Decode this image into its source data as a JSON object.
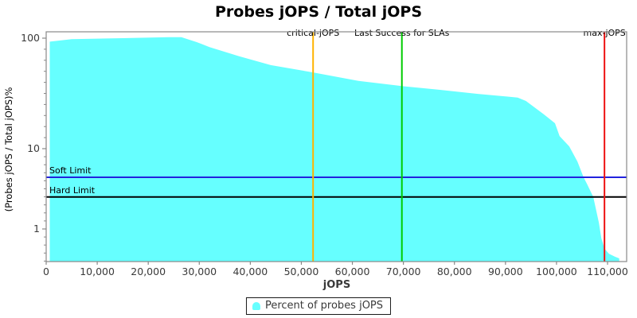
{
  "title": "Probes jOPS / Total jOPS",
  "chart_data": {
    "type": "area",
    "title": "Probes jOPS / Total jOPS",
    "xlabel": "jOPS",
    "ylabel": "(Probes jOPS / Total jOPS)%",
    "x_scale": "linear",
    "y_scale": "log",
    "xlim": [
      0,
      113700
    ],
    "ylim": [
      0.42,
      115
    ],
    "x_ticks": [
      0,
      10000,
      20000,
      30000,
      40000,
      50000,
      60000,
      70000,
      80000,
      90000,
      100000,
      110000
    ],
    "x_tick_labels": [
      "0",
      "10,000",
      "20,000",
      "30,000",
      "40,000",
      "50,000",
      "60,000",
      "70,000",
      "80,000",
      "90,000",
      "100,000",
      "110,000"
    ],
    "y_ticks": [
      100,
      10,
      1
    ],
    "y_tick_labels": [
      "100",
      "10",
      "1"
    ],
    "grid": false,
    "series": [
      {
        "name": "Percent of probes jOPS",
        "color": "#66FFFF",
        "points": [
          [
            700,
            93
          ],
          [
            5000,
            98
          ],
          [
            15000,
            100
          ],
          [
            24000,
            102
          ],
          [
            26500,
            102
          ],
          [
            29500,
            92
          ],
          [
            32000,
            83
          ],
          [
            37800,
            68.5
          ],
          [
            44000,
            57
          ],
          [
            52300,
            49
          ],
          [
            61200,
            41
          ],
          [
            69700,
            36.8
          ],
          [
            76800,
            34.2
          ],
          [
            84600,
            31.3
          ],
          [
            92400,
            29
          ],
          [
            94000,
            27
          ],
          [
            97500,
            20.5
          ],
          [
            99700,
            17
          ],
          [
            100600,
            13
          ],
          [
            102500,
            10.5
          ],
          [
            104100,
            6.9
          ],
          [
            105300,
            4.4
          ],
          [
            106000,
            3.6
          ],
          [
            107200,
            2.5
          ],
          [
            108300,
            1.2
          ],
          [
            108800,
            0.76
          ],
          [
            109400,
            0.57
          ],
          [
            110300,
            0.49
          ],
          [
            111500,
            0.45
          ],
          [
            112300,
            0.43
          ]
        ]
      }
    ],
    "markers_vertical": [
      {
        "label": "critical-jOPS",
        "x": 52300,
        "color": "#FFB300"
      },
      {
        "label": "Last Success for SLAs",
        "x": 69700,
        "color": "#00CC00"
      },
      {
        "label": "max-jOPS",
        "x": 109400,
        "color": "#EE1111"
      }
    ],
    "markers_horizontal": [
      {
        "label": "Soft Limit",
        "y": 4.4,
        "color": "#2222DD"
      },
      {
        "label": "Hard Limit",
        "y": 2.5,
        "color": "#000000"
      }
    ],
    "legend": {
      "position": "bottom",
      "label": "Percent of probes jOPS",
      "swatch_color": "#66FFFF"
    }
  },
  "colors": {
    "background": "#ffffff",
    "plot_border": "#888888",
    "tick_label": "#3a3a3a",
    "title": "#000000",
    "marker_label": "#000000"
  }
}
